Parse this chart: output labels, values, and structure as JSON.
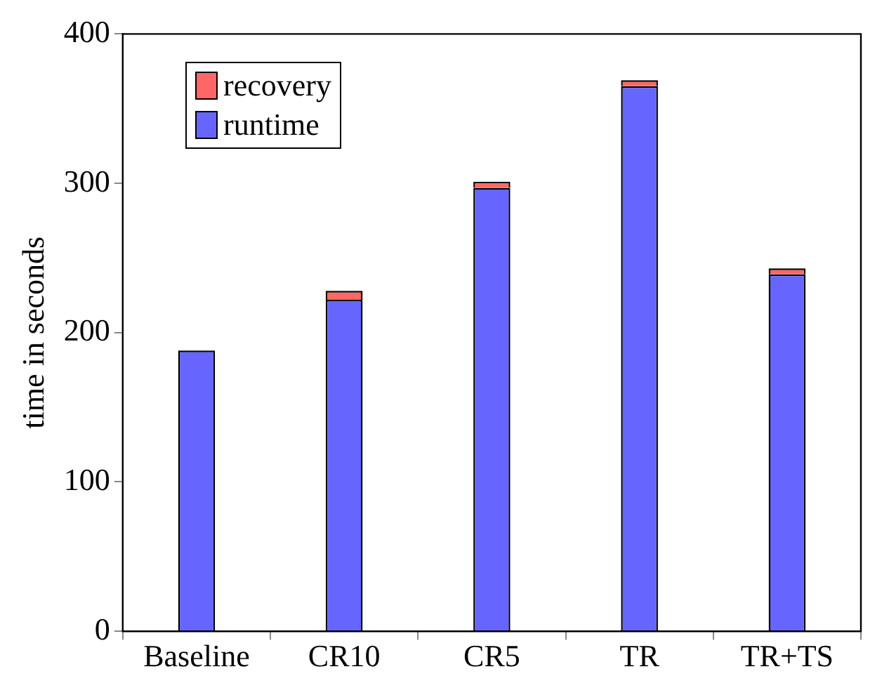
{
  "chart_data": {
    "type": "bar",
    "ylabel": "time in seconds",
    "categories": [
      "Baseline",
      "CR10",
      "CR5",
      "TR",
      "TR+TS"
    ],
    "stacked": true,
    "series": [
      {
        "name": "runtime",
        "color": "#6666ff",
        "values": [
          188,
          222,
          297,
          365,
          239
        ]
      },
      {
        "name": "recovery",
        "color": "#ff6666",
        "values": [
          0,
          6,
          4,
          4,
          4
        ]
      }
    ],
    "ylim": [
      0,
      400
    ],
    "yticks": [
      0,
      100,
      200,
      300,
      400
    ],
    "grid": false,
    "legend": "top left"
  }
}
